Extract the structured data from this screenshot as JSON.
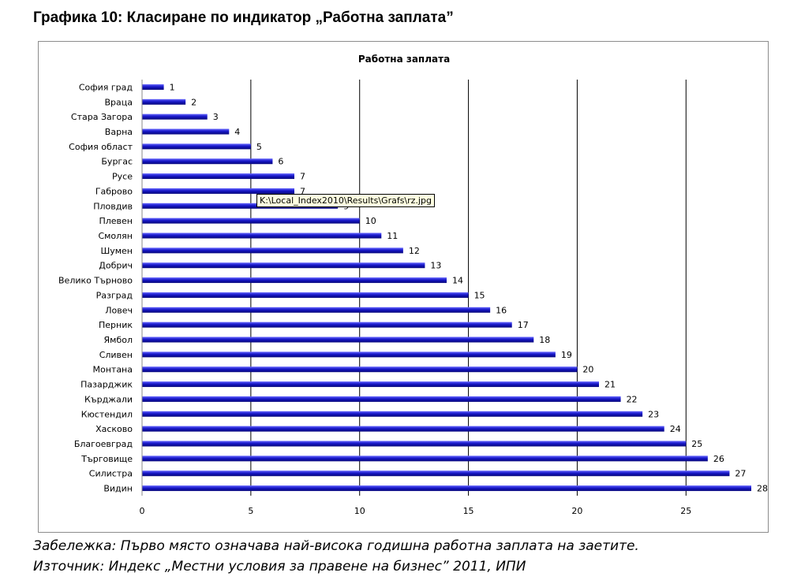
{
  "heading": "Графика 10: Класиране по индикатор „Работна заплата”",
  "tooltip": "K:\\Local_Index2010\\Results\\Grafs\\rz.jpg",
  "note": "Забележка: Първо място означава най-висока годишна работна заплата на заетите.",
  "source": "Източник: Индекс „Местни условия за правене на бизнес” 2011, ИПИ",
  "colors": {
    "bar": "#1616c8",
    "bar_light": "#6a6aff",
    "grid": "#000000"
  },
  "chart_data": {
    "type": "bar",
    "orientation": "horizontal",
    "title": "Работна заплата",
    "categories": [
      "София град",
      "Враца",
      "Стара Загора",
      "Варна",
      "София област",
      "Бургас",
      "Русе",
      "Габрово",
      "Пловдив",
      "Плевен",
      "Смолян",
      "Шумен",
      "Добрич",
      "Велико Търново",
      "Разград",
      "Ловеч",
      "Перник",
      "Ямбол",
      "Сливен",
      "Монтана",
      "Пазарджик",
      "Кърджали",
      "Кюстендил",
      "Хасково",
      "Благоевград",
      "Търговище",
      "Силистра",
      "Видин"
    ],
    "values": [
      1,
      2,
      3,
      4,
      5,
      6,
      7,
      7,
      9,
      10,
      11,
      12,
      13,
      14,
      15,
      16,
      17,
      18,
      19,
      20,
      21,
      22,
      23,
      24,
      25,
      26,
      27,
      28
    ],
    "xticks": [
      0,
      5,
      10,
      15,
      20,
      25
    ],
    "xlim": [
      0,
      28
    ],
    "grid": true,
    "legend": "none"
  }
}
